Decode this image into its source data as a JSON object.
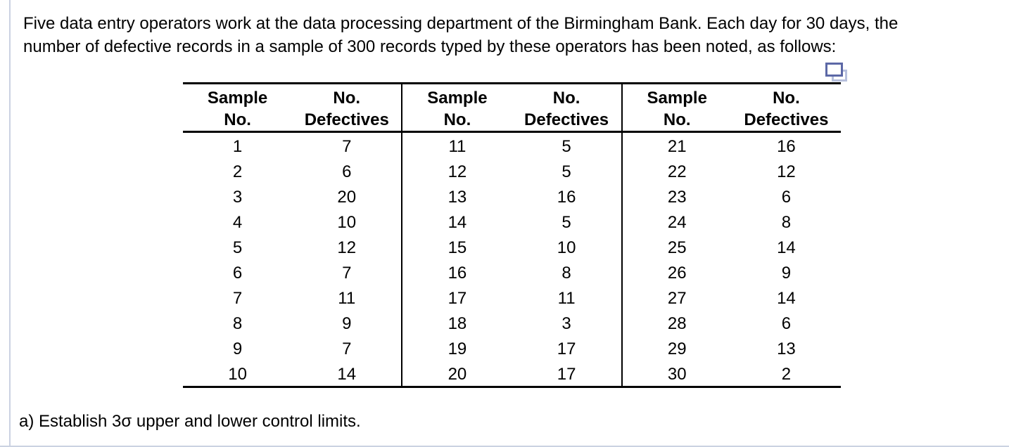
{
  "colors": {
    "background": "#ffffff",
    "text": "#000000",
    "table_border": "#000000",
    "page_rule": "#cbd2e2",
    "copy_icon_front": "#5c68a6",
    "copy_icon_back": "#b7c0dd"
  },
  "problem": {
    "intro_line1": "Five data entry operators work at the data processing department of the Birmingham Bank. Each day for 30 days, the",
    "intro_line2": "number of defective records in a sample of 300 records typed by these operators has been noted, as follows:",
    "question_a": "a) Establish 3σ upper and lower control limits."
  },
  "icons": {
    "copy_icon": "two-overlapping-rectangles"
  },
  "table": {
    "header": {
      "sample_line1": "Sample",
      "sample_line2": "No.",
      "defectives_line1": "No.",
      "defectives_line2": "Defectives"
    },
    "groups": [
      {
        "rows": [
          [
            1,
            7
          ],
          [
            2,
            6
          ],
          [
            3,
            20
          ],
          [
            4,
            10
          ],
          [
            5,
            12
          ],
          [
            6,
            7
          ],
          [
            7,
            11
          ],
          [
            8,
            9
          ],
          [
            9,
            7
          ],
          [
            10,
            14
          ]
        ]
      },
      {
        "rows": [
          [
            11,
            5
          ],
          [
            12,
            5
          ],
          [
            13,
            16
          ],
          [
            14,
            5
          ],
          [
            15,
            10
          ],
          [
            16,
            8
          ],
          [
            17,
            11
          ],
          [
            18,
            3
          ],
          [
            19,
            17
          ],
          [
            20,
            17
          ]
        ]
      },
      {
        "rows": [
          [
            21,
            16
          ],
          [
            22,
            12
          ],
          [
            23,
            6
          ],
          [
            24,
            8
          ],
          [
            25,
            14
          ],
          [
            26,
            9
          ],
          [
            27,
            14
          ],
          [
            28,
            6
          ],
          [
            29,
            13
          ],
          [
            30,
            2
          ]
        ]
      }
    ]
  },
  "chart_data": {
    "type": "table",
    "columns": [
      "Sample No.",
      "No. Defectives"
    ],
    "rows": [
      [
        1,
        7
      ],
      [
        2,
        6
      ],
      [
        3,
        20
      ],
      [
        4,
        10
      ],
      [
        5,
        12
      ],
      [
        6,
        7
      ],
      [
        7,
        11
      ],
      [
        8,
        9
      ],
      [
        9,
        7
      ],
      [
        10,
        14
      ],
      [
        11,
        5
      ],
      [
        12,
        5
      ],
      [
        13,
        16
      ],
      [
        14,
        5
      ],
      [
        15,
        10
      ],
      [
        16,
        8
      ],
      [
        17,
        11
      ],
      [
        18,
        3
      ],
      [
        19,
        17
      ],
      [
        20,
        17
      ],
      [
        21,
        16
      ],
      [
        22,
        12
      ],
      [
        23,
        6
      ],
      [
        24,
        8
      ],
      [
        25,
        14
      ],
      [
        26,
        9
      ],
      [
        27,
        14
      ],
      [
        28,
        6
      ],
      [
        29,
        13
      ],
      [
        30,
        2
      ]
    ]
  }
}
